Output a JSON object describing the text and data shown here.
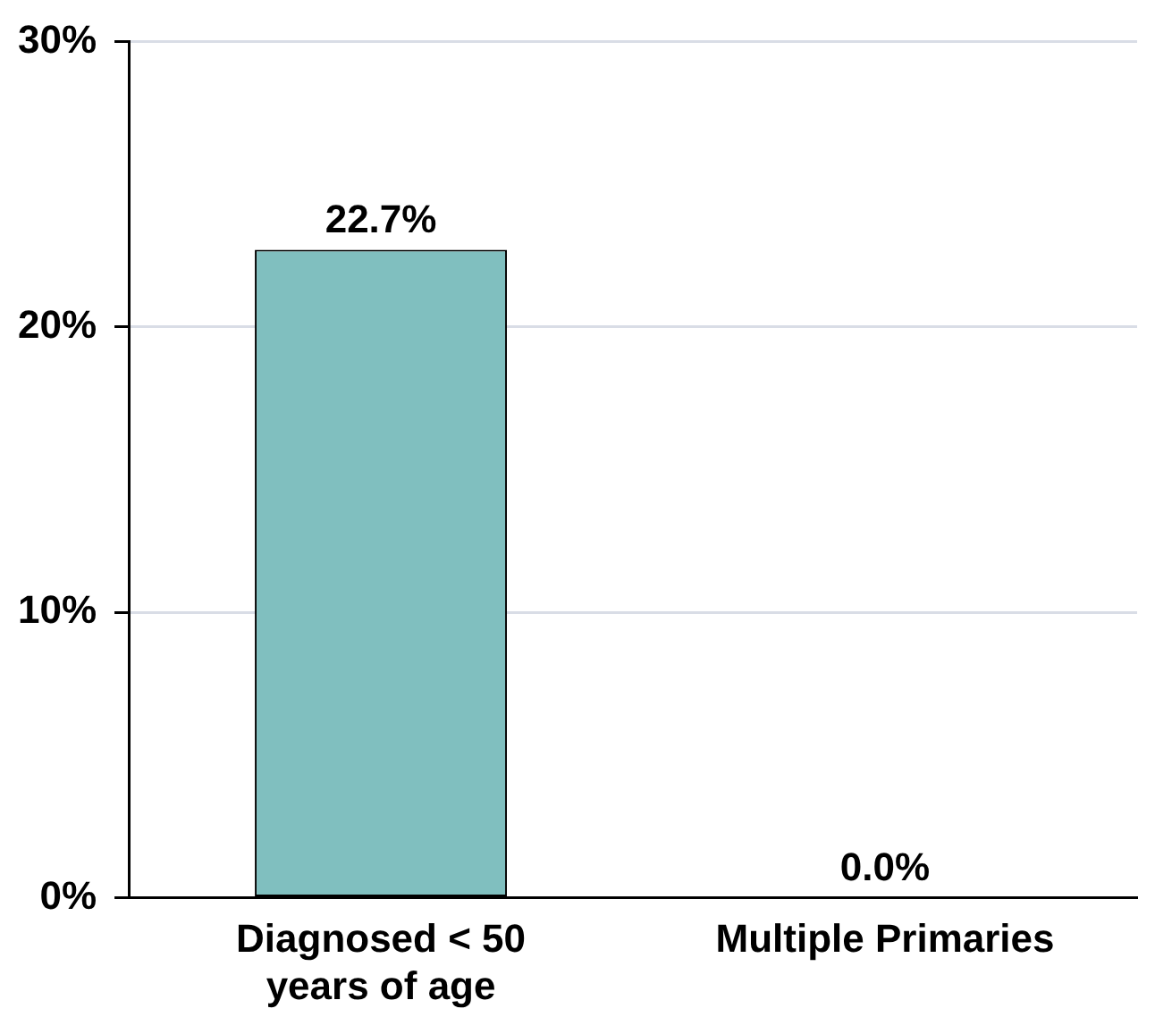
{
  "chart_data": {
    "type": "bar",
    "categories": [
      [
        "Diagnosed < 50",
        "years of age"
      ],
      [
        "Multiple Primaries"
      ]
    ],
    "values": [
      22.7,
      0.0
    ],
    "color": "#80bfbf",
    "value_labels": [
      "22.7%",
      "0.0%"
    ],
    "ylim": [
      0,
      30
    ],
    "yticks": [
      {
        "value": 0,
        "label": "0%"
      },
      {
        "value": 10,
        "label": "10%"
      },
      {
        "value": 20,
        "label": "20%"
      },
      {
        "value": 30,
        "label": "30%"
      }
    ],
    "grid": "y",
    "legend": false
  }
}
